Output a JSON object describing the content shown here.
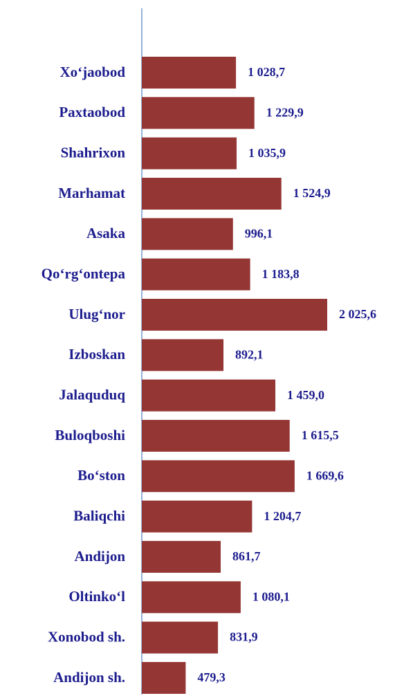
{
  "chart_data": {
    "type": "bar",
    "orientation": "horizontal",
    "categories": [
      "Xo‘jaobod",
      "Paxtaobod",
      "Shahrixon",
      "Marhamat",
      "Asaka",
      "Qo‘rg‘ontepa",
      "Ulug‘nor",
      "Izboskan",
      "Jalaquduq",
      "Buloqboshi",
      "Bo‘ston",
      "Baliqchi",
      "Andijon",
      "Oltinko‘l",
      "Xonobod sh.",
      "Andijon sh."
    ],
    "values": [
      1028.7,
      1229.9,
      1035.9,
      1524.9,
      996.1,
      1183.8,
      2025.6,
      892.1,
      1459.0,
      1615.5,
      1669.6,
      1204.7,
      861.7,
      1080.1,
      831.9,
      479.3
    ],
    "value_labels": [
      "1 028,7",
      "1 229,9",
      "1 035,9",
      "1 524,9",
      "996,1",
      "1 183,8",
      "2 025,6",
      "892,1",
      "1 459,0",
      "1 615,5",
      "1 669,6",
      "1 204,7",
      "861,7",
      "1 080,1",
      "831,9",
      "479,3"
    ],
    "color": "#943634"
  }
}
